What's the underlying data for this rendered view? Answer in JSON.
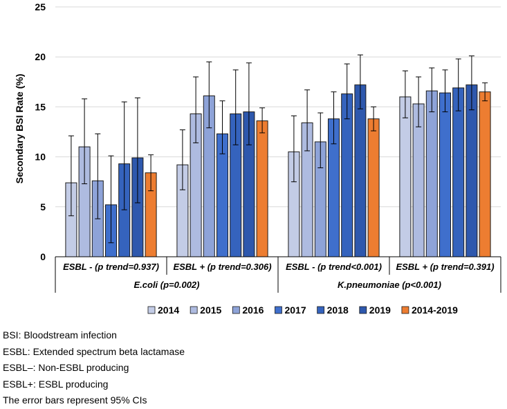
{
  "chart_data": {
    "type": "bar",
    "ylabel": "Secondary BSI Rate (%)",
    "ylim": [
      0,
      25
    ],
    "yticks": [
      0,
      5,
      10,
      15,
      20,
      25
    ],
    "grid": true,
    "legend_position": "bottom",
    "categories": [
      "ESBL - (p trend=0.937)",
      "ESBL + (p trend=0.306)",
      "ESBL - (p trend<0.001)",
      "ESBL + (p trend=0.391)"
    ],
    "groups": [
      {
        "label": "E.coli (p=0.002)",
        "categories": [
          0,
          1
        ]
      },
      {
        "label": "K.pneumoniae (p<0.001)",
        "categories": [
          2,
          3
        ]
      }
    ],
    "series": [
      {
        "name": "2014",
        "color": "#c3cce6",
        "values": [
          7.4,
          9.2,
          10.5,
          16.0
        ],
        "ci_low": [
          4.1,
          6.7,
          7.5,
          13.9
        ],
        "ci_high": [
          12.1,
          12.7,
          14.1,
          18.6
        ]
      },
      {
        "name": "2015",
        "color": "#aebbe0",
        "values": [
          11.0,
          14.3,
          13.4,
          15.3
        ],
        "ci_low": [
          7.3,
          11.4,
          10.6,
          13.0
        ],
        "ci_high": [
          15.8,
          18.0,
          16.7,
          18.0
        ]
      },
      {
        "name": "2016",
        "color": "#8ea3d8",
        "values": [
          7.6,
          16.1,
          11.5,
          16.6
        ],
        "ci_low": [
          3.8,
          12.9,
          8.9,
          14.5
        ],
        "ci_high": [
          12.3,
          19.5,
          14.4,
          18.9
        ]
      },
      {
        "name": "2017",
        "color": "#3f6fcc",
        "values": [
          5.2,
          12.3,
          13.8,
          16.4
        ],
        "ci_low": [
          1.4,
          10.3,
          11.3,
          14.5
        ],
        "ci_high": [
          10.1,
          15.6,
          16.5,
          18.7
        ]
      },
      {
        "name": "2018",
        "color": "#3563bd",
        "values": [
          9.3,
          14.3,
          16.3,
          16.9
        ],
        "ci_low": [
          4.7,
          11.2,
          13.8,
          14.6
        ],
        "ci_high": [
          15.5,
          18.7,
          19.3,
          19.8
        ]
      },
      {
        "name": "2019",
        "color": "#2e58ad",
        "values": [
          9.9,
          14.5,
          17.2,
          17.2
        ],
        "ci_low": [
          5.4,
          11.2,
          14.8,
          14.7
        ],
        "ci_high": [
          15.9,
          19.4,
          20.2,
          20.1
        ]
      },
      {
        "name": "2014-2019",
        "color": "#ed7d31",
        "values": [
          8.4,
          13.6,
          13.8,
          16.5
        ],
        "ci_low": [
          6.6,
          12.4,
          12.6,
          15.6
        ],
        "ci_high": [
          10.2,
          14.9,
          15.0,
          17.4
        ]
      }
    ]
  },
  "notes": [
    "BSI: Bloodstream infection",
    "ESBL: Extended spectrum beta lactamase",
    "ESBL–: Non-ESBL producing",
    "ESBL+: ESBL producing",
    "The error bars represent 95% CIs"
  ]
}
